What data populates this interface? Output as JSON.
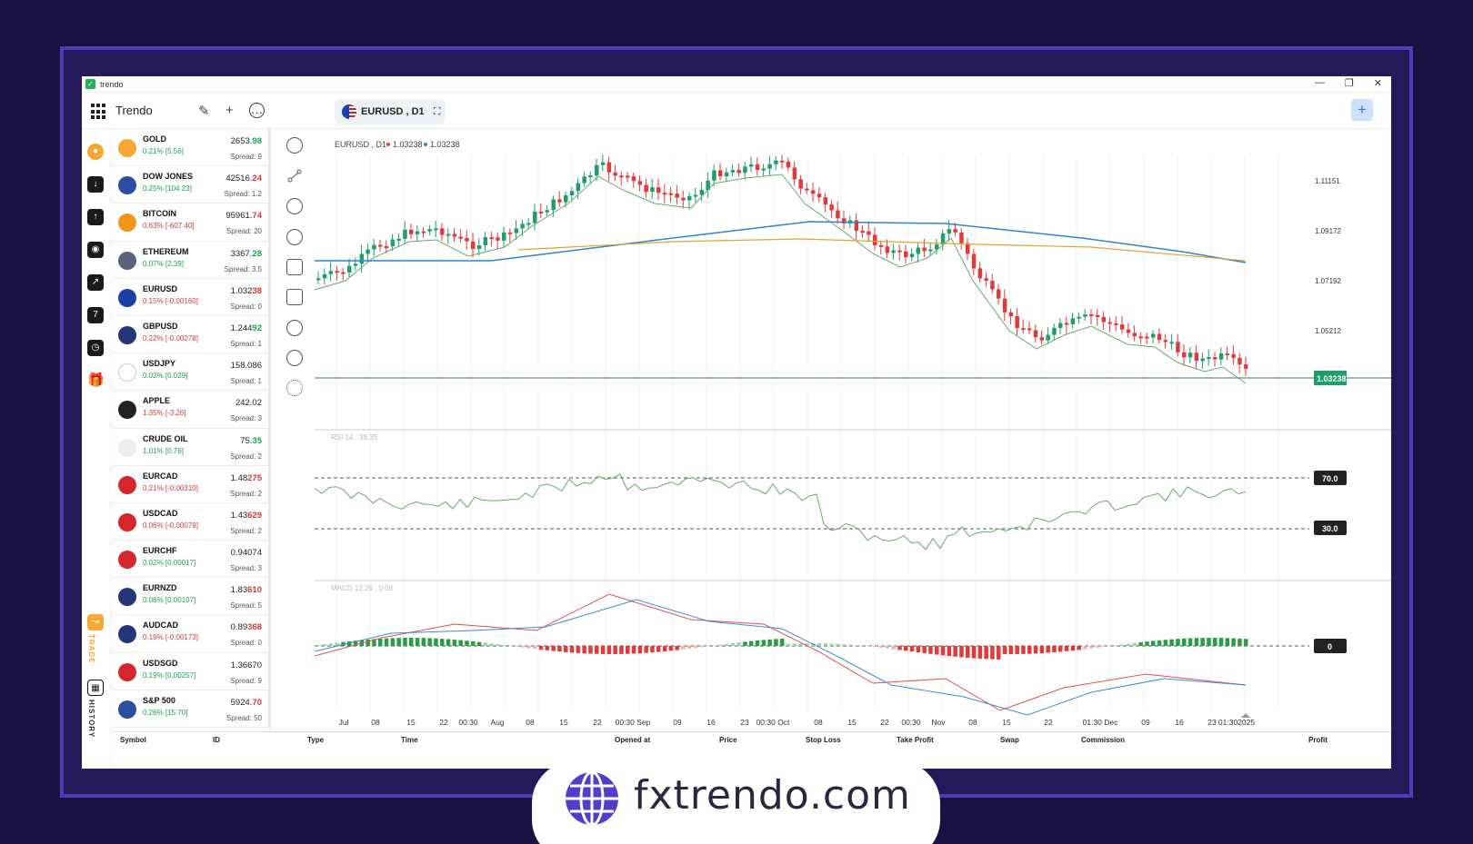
{
  "window": {
    "title": "trendo",
    "controls": [
      "—",
      "❐",
      "✕"
    ]
  },
  "toolbar": {
    "brand": "Trendo",
    "symbol": "EURUSD , D1",
    "add_label": "+"
  },
  "left_nav": {
    "trade_label": "TRADE",
    "history_label": "HISTORY"
  },
  "watchlist": [
    {
      "name": "GOLD",
      "change": "0.21% [5.56]",
      "dir": "up",
      "price_main": "2653.",
      "price_bold": "98",
      "bold_color": "up",
      "spread": "Spread: 9",
      "flag": "gold"
    },
    {
      "name": "DOW JONES",
      "change": "0.25% [104.23]",
      "dir": "up",
      "price_main": "42516.",
      "price_bold": "24",
      "bold_color": "dn",
      "spread": "Spread: 1.2",
      "flag": "us"
    },
    {
      "name": "BITCOIN",
      "change": "0.63% [-607.40]",
      "dir": "dn",
      "price_main": "95961.",
      "price_bold": "74",
      "bold_color": "dn",
      "spread": "Spread: 20",
      "flag": "btc"
    },
    {
      "name": "ETHEREUM",
      "change": "0.07% [2.39]",
      "dir": "up",
      "price_main": "3367.",
      "price_bold": "28",
      "bold_color": "up",
      "spread": "Spread: 3.5",
      "flag": "eth"
    },
    {
      "name": "EURUSD",
      "change": "0.15% [-0.00160]",
      "dir": "dn",
      "price_main": "1.032",
      "price_bold": "38",
      "bold_color": "dn",
      "spread": "Spread: 0",
      "flag": "eu"
    },
    {
      "name": "GBPUSD",
      "change": "0.22% [-0.00278]",
      "dir": "dn",
      "price_main": "1.244",
      "price_bold": "92",
      "bold_color": "up",
      "spread": "Spread: 1",
      "flag": "gb"
    },
    {
      "name": "USDJPY",
      "change": "0.02% [0.029]",
      "dir": "up",
      "price_main": "158.086",
      "price_bold": "",
      "bold_color": "up",
      "spread": "Spread: 1",
      "flag": "jp"
    },
    {
      "name": "APPLE",
      "change": "1.35% [-3.26]",
      "dir": "dn",
      "price_main": "242.02",
      "price_bold": "",
      "bold_color": "up",
      "spread": "Spread: 3",
      "flag": "apple"
    },
    {
      "name": "CRUDE OIL",
      "change": "1.01% [0.76]",
      "dir": "up",
      "price_main": "75.",
      "price_bold": "35",
      "bold_color": "up",
      "spread": "Spread: 2",
      "flag": "oil"
    },
    {
      "name": "EURCAD",
      "change": "0.21% [-0.00310]",
      "dir": "dn",
      "price_main": "1.48",
      "price_bold": "275",
      "bold_color": "dn",
      "spread": "Spread: 2",
      "flag": "ca"
    },
    {
      "name": "USDCAD",
      "change": "0.06% [-0.00079]",
      "dir": "dn",
      "price_main": "1.43",
      "price_bold": "629",
      "bold_color": "dn",
      "spread": "Spread: 2",
      "flag": "ca"
    },
    {
      "name": "EURCHF",
      "change": "0.02% [0.00017]",
      "dir": "up",
      "price_main": "0.94074",
      "price_bold": "",
      "bold_color": "up",
      "spread": "Spread: 3",
      "flag": "ch"
    },
    {
      "name": "EURNZD",
      "change": "0.06% [0.00107]",
      "dir": "up",
      "price_main": "1.83",
      "price_bold": "610",
      "bold_color": "dn",
      "spread": "Spread: 5",
      "flag": "nz"
    },
    {
      "name": "AUDCAD",
      "change": "0.19% [-0.00173]",
      "dir": "dn",
      "price_main": "0.89",
      "price_bold": "368",
      "bold_color": "dn",
      "spread": "Spread: 0",
      "flag": "au"
    },
    {
      "name": "USDSGD",
      "change": "0.19% [0.00257]",
      "dir": "up",
      "price_main": "1.36670",
      "price_bold": "",
      "bold_color": "up",
      "spread": "Spread: 9",
      "flag": "sg"
    },
    {
      "name": "S&P 500",
      "change": "0.26% [15.70]",
      "dir": "up",
      "price_main": "5924.",
      "price_bold": "70",
      "bold_color": "dn",
      "spread": "Spread: 50",
      "flag": "us"
    }
  ],
  "chart": {
    "legend": "EURUSD , D1",
    "legend_v1": "1.03238",
    "legend_v2": "1.03238",
    "current_price": "1.03238",
    "rsi_label": "RSI 14 , 39.35",
    "rsi_upper": "70.0",
    "rsi_lower": "30.0",
    "macd_label": "MACD 12 26 , 0.00",
    "macd_zero": "0",
    "x_ticks": [
      "Jul",
      "08",
      "15",
      "22",
      "00:30",
      "Aug",
      "08",
      "15",
      "22",
      "00:30 Sep",
      "09",
      "16",
      "23",
      "00:30 Oct",
      "08",
      "15",
      "22",
      "00:30",
      "Nov",
      "08",
      "15",
      "22",
      "01:30 Dec",
      "09",
      "16",
      "23",
      "01:302025"
    ]
  },
  "chart_data": {
    "type": "candlestick",
    "y_ticks": [
      "1.11151",
      "1.09172",
      "1.07192",
      "1.05212"
    ],
    "ma_colors": {
      "fast": "#6aa86a",
      "mid": "#2f86c8",
      "slow": "#e0a430"
    },
    "up_color": "#1f9d6a",
    "down_color": "#e23a3a"
  },
  "bottom_columns": [
    "Symbol",
    "ID",
    "Type",
    "Time",
    "Opened at",
    "Price",
    "Stop Loss",
    "Take Profit",
    "Swap",
    "Commission",
    "Profit"
  ],
  "footer": {
    "site": "fxtrendo.com"
  }
}
